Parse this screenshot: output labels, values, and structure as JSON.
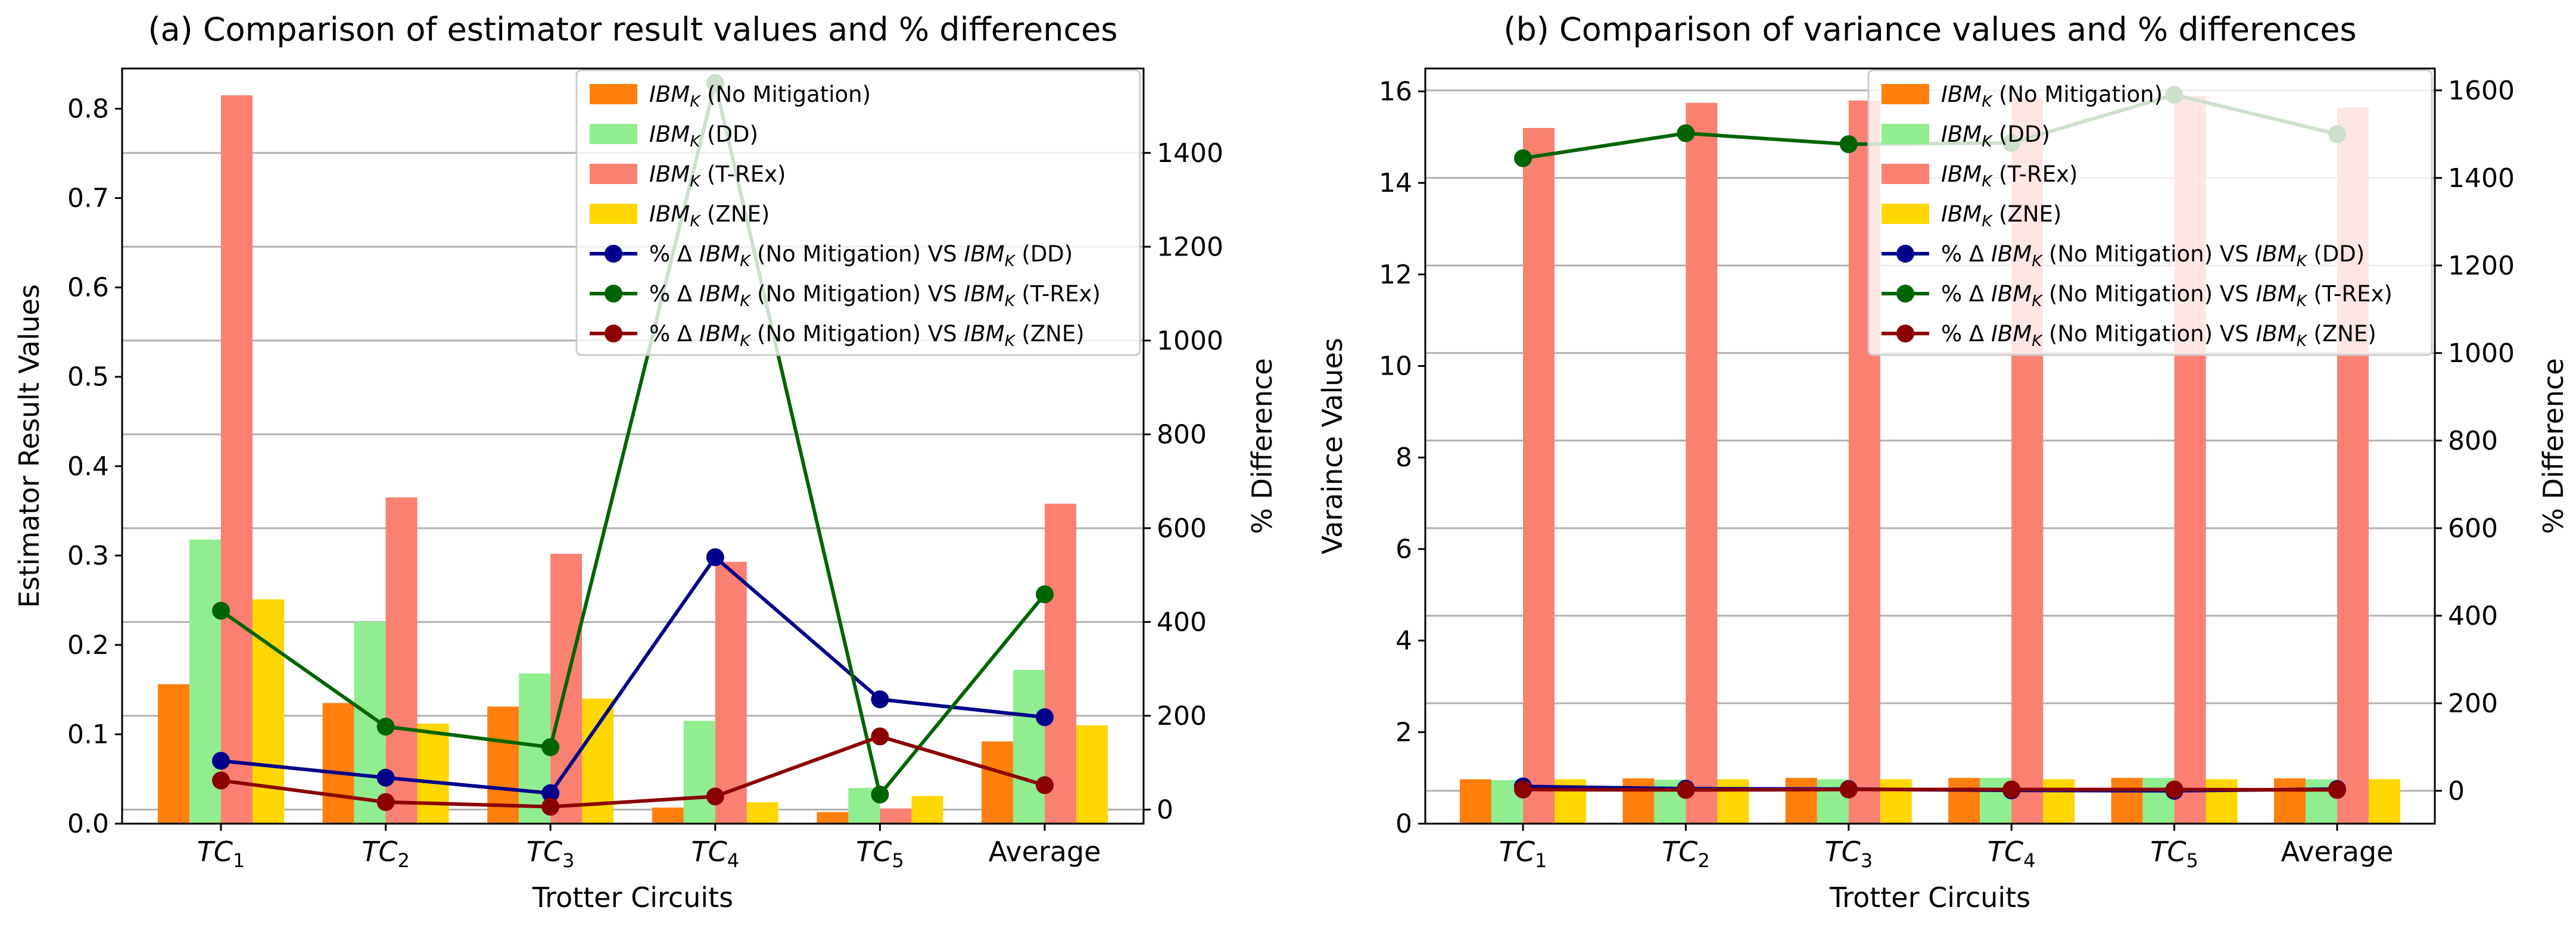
{
  "figure": {
    "background": "#ffffff"
  },
  "colors": {
    "no_mitigation": "#ff7f0e",
    "dd": "#90ee90",
    "trex": "#fa8072",
    "zne": "#ffd700",
    "line_dd": "#00008b",
    "line_trex": "#006400",
    "line_zne": "#8b0000",
    "grid": "#b0b0b0"
  },
  "chart_data": [
    {
      "type": "bar",
      "title": "(a) Comparison of estimator result values and % differences",
      "xlabel": "Trotter Circuits",
      "ylabel": "Estimator Result Values",
      "ylabel_right": "% Difference",
      "categories": [
        {
          "base": "TC",
          "sub": "1"
        },
        {
          "base": "TC",
          "sub": "2"
        },
        {
          "base": "TC",
          "sub": "3"
        },
        {
          "base": "TC",
          "sub": "4"
        },
        {
          "base": "TC",
          "sub": "5"
        },
        {
          "base": "Average",
          "sub": ""
        }
      ],
      "ylim": [
        0,
        0.845
      ],
      "yticks": [
        0.0,
        0.1,
        0.2,
        0.3,
        0.4,
        0.5,
        0.6,
        0.7,
        0.8
      ],
      "ytick_labels": [
        "0.0",
        "0.1",
        "0.2",
        "0.3",
        "0.4",
        "0.5",
        "0.6",
        "0.7",
        "0.8"
      ],
      "y2lim": [
        -30,
        1580
      ],
      "y2ticks": [
        0,
        200,
        400,
        600,
        800,
        1000,
        1200,
        1400
      ],
      "y2tick_labels": [
        "0",
        "200",
        "400",
        "600",
        "800",
        "1000",
        "1200",
        "1400"
      ],
      "grid": "right-axis horizontal",
      "legend_position": "top-right",
      "series": [
        {
          "name": "(No Mitigation)",
          "kind": "bar",
          "color": "#ff7f0e",
          "values": [
            0.156,
            0.135,
            0.131,
            0.018,
            0.013,
            0.092
          ]
        },
        {
          "name": "(DD)",
          "kind": "bar",
          "color": "#90ee90",
          "values": [
            0.318,
            0.226,
            0.168,
            0.115,
            0.04,
            0.172
          ]
        },
        {
          "name": "(T-REx)",
          "kind": "bar",
          "color": "#fa8072",
          "values": [
            0.815,
            0.365,
            0.302,
            0.293,
            0.017,
            0.358
          ]
        },
        {
          "name": "(ZNE)",
          "kind": "bar",
          "color": "#ffd700",
          "values": [
            0.251,
            0.112,
            0.14,
            0.024,
            0.031,
            0.11
          ]
        },
        {
          "name": "% Δ (No Mitigation) VS (DD)",
          "kind": "line",
          "color": "#00008b",
          "values": [
            104,
            68,
            35,
            538,
            235,
            197
          ]
        },
        {
          "name": "% Δ (No Mitigation) VS (T-REx)",
          "kind": "line",
          "color": "#006400",
          "values": [
            424,
            177,
            133,
            1549,
            32,
            459
          ]
        },
        {
          "name": "% Δ (No Mitigation) VS (ZNE)",
          "kind": "line",
          "color": "#8b0000",
          "values": [
            62,
            16,
            6,
            28,
            156,
            52
          ]
        }
      ],
      "legend": [
        {
          "prefix": "",
          "label": "IBM",
          "sub": "K",
          "suffix": " (No Mitigation)",
          "mid": "",
          "label2": "",
          "suffix2": ""
        },
        {
          "prefix": "",
          "label": "IBM",
          "sub": "K",
          "suffix": " (DD)",
          "mid": "",
          "label2": "",
          "suffix2": ""
        },
        {
          "prefix": "",
          "label": "IBM",
          "sub": "K",
          "suffix": " (T-REx)",
          "mid": "",
          "label2": "",
          "suffix2": ""
        },
        {
          "prefix": "",
          "label": "IBM",
          "sub": "K",
          "suffix": " (ZNE)",
          "mid": "",
          "label2": "",
          "suffix2": ""
        },
        {
          "prefix": "% Δ ",
          "label": "IBM",
          "sub": "K",
          "suffix": " (No Mitigation) ",
          "mid": "VS ",
          "label2": "IBM",
          "suffix2": " (DD)"
        },
        {
          "prefix": "% Δ ",
          "label": "IBM",
          "sub": "K",
          "suffix": " (No Mitigation) ",
          "mid": "VS ",
          "label2": "IBM",
          "suffix2": " (T-REx)"
        },
        {
          "prefix": "% Δ ",
          "label": "IBM",
          "sub": "K",
          "suffix": " (No Mitigation) ",
          "mid": "VS ",
          "label2": "IBM",
          "suffix2": " (ZNE)"
        }
      ]
    },
    {
      "type": "bar",
      "title": "(b) Comparison of variance values and % differences",
      "xlabel": "Trotter Circuits",
      "ylabel": "Varaince Values",
      "ylabel_right": "% Difference",
      "categories": [
        {
          "base": "TC",
          "sub": "1"
        },
        {
          "base": "TC",
          "sub": "2"
        },
        {
          "base": "TC",
          "sub": "3"
        },
        {
          "base": "TC",
          "sub": "4"
        },
        {
          "base": "TC",
          "sub": "5"
        },
        {
          "base": "Average",
          "sub": ""
        }
      ],
      "ylim": [
        0,
        16.5
      ],
      "yticks": [
        0,
        2,
        4,
        6,
        8,
        10,
        12,
        14,
        16
      ],
      "ytick_labels": [
        "0",
        "2",
        "4",
        "6",
        "8",
        "10",
        "12",
        "14",
        "16"
      ],
      "y2lim": [
        -75,
        1650
      ],
      "y2ticks": [
        0,
        200,
        400,
        600,
        800,
        1000,
        1200,
        1400,
        1600
      ],
      "y2tick_labels": [
        "0",
        "200",
        "400",
        "600",
        "800",
        "1000",
        "1200",
        "1400",
        "1600"
      ],
      "grid": "right-axis horizontal",
      "legend_position": "top-right",
      "series": [
        {
          "name": "(No Mitigation)",
          "kind": "bar",
          "color": "#ff7f0e",
          "values": [
            0.97,
            0.99,
            1.0,
            1.0,
            1.0,
            0.99
          ]
        },
        {
          "name": "(DD)",
          "kind": "bar",
          "color": "#90ee90",
          "values": [
            0.95,
            0.96,
            0.97,
            1.0,
            1.0,
            0.97
          ]
        },
        {
          "name": "(T-REx)",
          "kind": "bar",
          "color": "#fa8072",
          "values": [
            15.2,
            15.75,
            15.8,
            15.85,
            15.9,
            15.65
          ]
        },
        {
          "name": "(ZNE)",
          "kind": "bar",
          "color": "#ffd700",
          "values": [
            0.97,
            0.97,
            0.97,
            0.97,
            0.97,
            0.97
          ]
        },
        {
          "name": "% Δ (No Mitigation) VS (DD)",
          "kind": "line",
          "color": "#00008b",
          "values": [
            10,
            5,
            4,
            1,
            0,
            4
          ]
        },
        {
          "name": "% Δ (No Mitigation) VS (T-REx)",
          "kind": "line",
          "color": "#006400",
          "values": [
            1445,
            1502,
            1477,
            1480,
            1590,
            1500
          ]
        },
        {
          "name": "% Δ (No Mitigation) VS (ZNE)",
          "kind": "line",
          "color": "#8b0000",
          "values": [
            3,
            2,
            3,
            3,
            3,
            2
          ]
        }
      ],
      "legend": [
        {
          "prefix": "",
          "label": "IBM",
          "sub": "K",
          "suffix": " (No Mitigation)",
          "mid": "",
          "label2": "",
          "suffix2": ""
        },
        {
          "prefix": "",
          "label": "IBM",
          "sub": "K",
          "suffix": " (DD)",
          "mid": "",
          "label2": "",
          "suffix2": ""
        },
        {
          "prefix": "",
          "label": "IBM",
          "sub": "K",
          "suffix": " (T-REx)",
          "mid": "",
          "label2": "",
          "suffix2": ""
        },
        {
          "prefix": "",
          "label": "IBM",
          "sub": "K",
          "suffix": " (ZNE)",
          "mid": "",
          "label2": "",
          "suffix2": ""
        },
        {
          "prefix": "% Δ ",
          "label": "IBM",
          "sub": "K",
          "suffix": " (No Mitigation) ",
          "mid": "VS ",
          "label2": "IBM",
          "suffix2": " (DD)"
        },
        {
          "prefix": "% Δ ",
          "label": "IBM",
          "sub": "K",
          "suffix": " (No Mitigation) ",
          "mid": "VS ",
          "label2": "IBM",
          "suffix2": " (T-REx)"
        },
        {
          "prefix": "% Δ ",
          "label": "IBM",
          "sub": "K",
          "suffix": " (No Mitigation) ",
          "mid": "VS ",
          "label2": "IBM",
          "suffix2": " (ZNE)"
        }
      ]
    }
  ]
}
